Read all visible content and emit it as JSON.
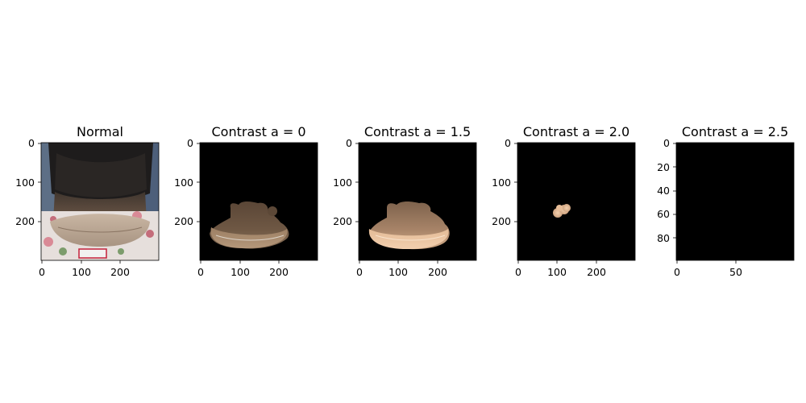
{
  "figure": {
    "panels": [
      {
        "title": "Normal",
        "image": "photo of the back of a person's neck with dark hair and a floral-patterned collar",
        "xticks": [
          "0",
          "100",
          "200"
        ],
        "yticks": [
          "0",
          "100",
          "200"
        ],
        "xrange": [
          0,
          299
        ],
        "yrange": [
          0,
          299
        ]
      },
      {
        "title": "Contrast a = 0",
        "image": "segmented neck skin region on black background",
        "xticks": [
          "0",
          "100",
          "200"
        ],
        "yticks": [
          "0",
          "100",
          "200"
        ],
        "xrange": [
          0,
          299
        ],
        "yrange": [
          0,
          299
        ]
      },
      {
        "title": "Contrast a = 1.5",
        "image": "brightened segmented neck skin region on black background",
        "xticks": [
          "0",
          "100",
          "200"
        ],
        "yticks": [
          "0",
          "100",
          "200"
        ],
        "xrange": [
          0,
          299
        ],
        "yrange": [
          0,
          299
        ]
      },
      {
        "title": "Contrast a = 2.0",
        "image": "small bright blob on black background",
        "xticks": [
          "0",
          "100",
          "200"
        ],
        "yticks": [
          "0",
          "100",
          "200"
        ],
        "xrange": [
          0,
          299
        ],
        "yrange": [
          0,
          299
        ]
      },
      {
        "title": "Contrast a = 2.5",
        "image": "solid black image",
        "xticks": [
          "0",
          "50"
        ],
        "yticks": [
          "0",
          "20",
          "40",
          "60",
          "80"
        ],
        "xrange": [
          0,
          99
        ],
        "yrange": [
          0,
          99
        ]
      }
    ]
  },
  "colors": {
    "background": "#ffffff",
    "image_black": "#000000",
    "axis": "#000000"
  }
}
